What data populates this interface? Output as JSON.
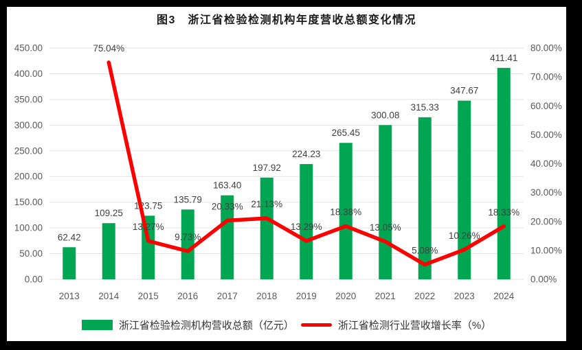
{
  "chart_data": {
    "type": "bar+line",
    "title": "图3　浙江省检验检测机构年度营收总额变化情况",
    "categories": [
      "2013",
      "2014",
      "2015",
      "2016",
      "2017",
      "2018",
      "2019",
      "2020",
      "2021",
      "2022",
      "2023",
      "2024"
    ],
    "series": [
      {
        "name": "浙江省检验检测机构营收总额（亿元）",
        "type": "bar",
        "axis": "left",
        "color": "#00A651",
        "values": [
          62.42,
          109.25,
          123.75,
          135.79,
          163.4,
          197.92,
          224.23,
          265.45,
          300.08,
          315.33,
          347.67,
          411.41
        ],
        "labels": [
          "62.42",
          "109.25",
          "123.75",
          "135.79",
          "163.40",
          "197.92",
          "224.23",
          "265.45",
          "300.08",
          "315.33",
          "347.67",
          "411.41"
        ]
      },
      {
        "name": "浙江省检测行业营收增长率（%）",
        "type": "line",
        "axis": "right",
        "color": "#FF0000",
        "values": [
          null,
          75.04,
          13.27,
          9.73,
          20.33,
          21.13,
          13.29,
          18.38,
          13.05,
          5.08,
          10.26,
          18.33
        ],
        "labels": [
          null,
          "75.04%",
          "13.27%",
          "9.73%",
          "20.33%",
          "21.13%",
          "13.29%",
          "18.38%",
          "13.05%",
          "5.08%",
          "10.26%",
          "18.33%"
        ]
      }
    ],
    "left_axis": {
      "min": 0,
      "max": 450,
      "step": 50,
      "ticks": [
        "0.00",
        "50.00",
        "100.00",
        "150.00",
        "200.00",
        "250.00",
        "300.00",
        "350.00",
        "400.00",
        "450.00"
      ]
    },
    "right_axis": {
      "min": 0,
      "max": 80,
      "step": 10,
      "ticks": [
        "0.00%",
        "10.00%",
        "20.00%",
        "30.00%",
        "40.00%",
        "50.00%",
        "60.00%",
        "70.00%",
        "80.00%"
      ]
    },
    "grid": true,
    "legend_position": "bottom",
    "background_color": "#ffffff",
    "frame_color": "#000000"
  }
}
